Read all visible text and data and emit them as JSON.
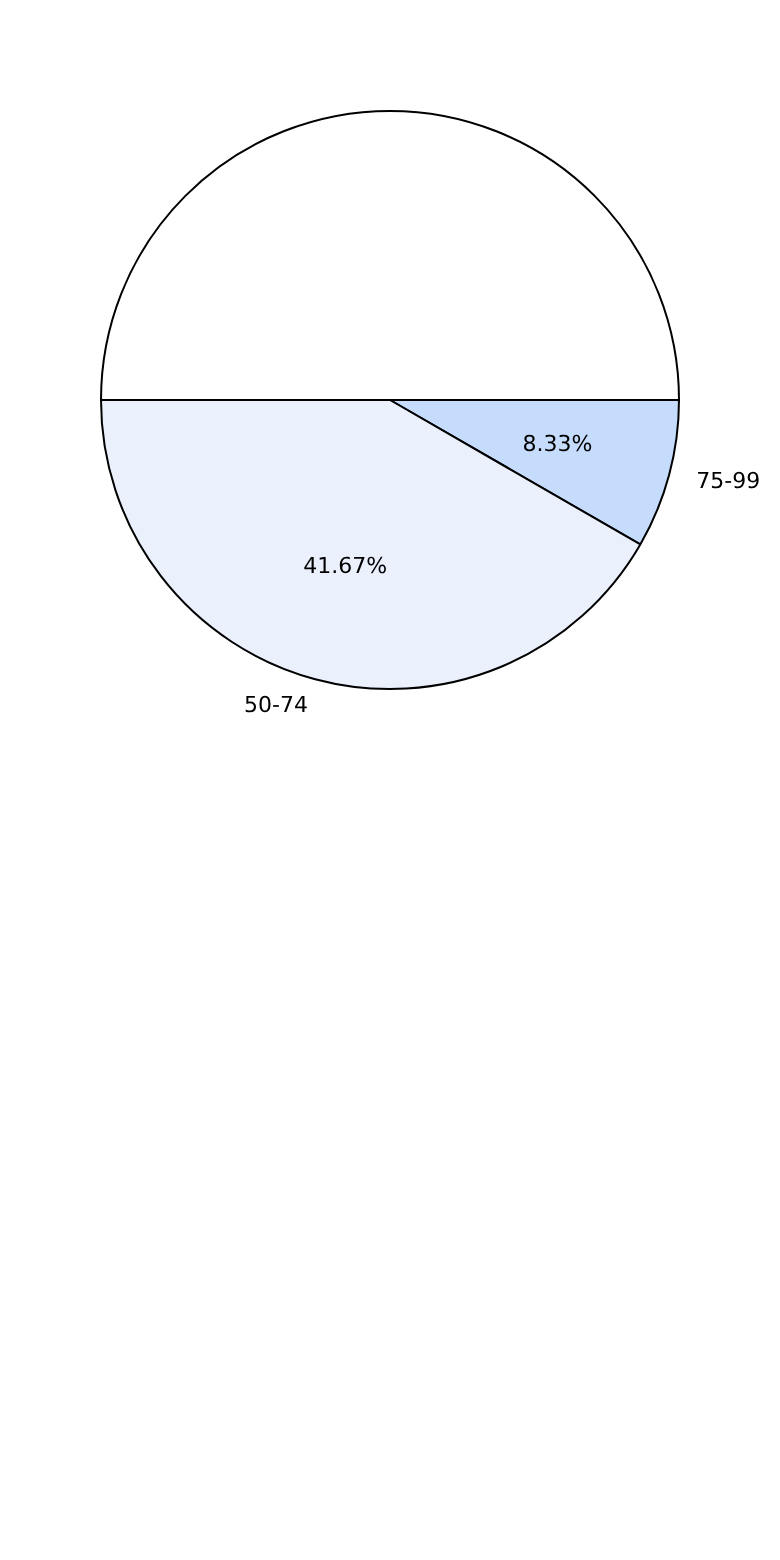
{
  "chart_data": {
    "type": "pie",
    "categories": [
      "75-99",
      "50-74",
      null
    ],
    "values": [
      8.33,
      41.67,
      50
    ],
    "colors": [
      "#c6dcfc",
      "#eaf1fd",
      "#ffffff"
    ],
    "value_labels": [
      "8.33%",
      "41.67%",
      null
    ],
    "legend": false
  }
}
